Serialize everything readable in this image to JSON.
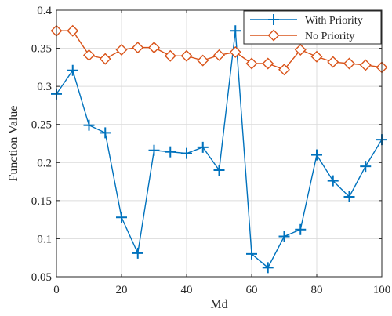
{
  "chart_data": {
    "type": "line",
    "title": "",
    "xlabel": "Md",
    "ylabel": "Function Value",
    "xlim": [
      0,
      100
    ],
    "ylim": [
      0.05,
      0.4
    ],
    "x_ticks": [
      0,
      20,
      40,
      60,
      80,
      100
    ],
    "x_tick_labels": [
      "0",
      "20",
      "40",
      "60",
      "80",
      "100"
    ],
    "y_ticks": [
      0.05,
      0.1,
      0.15,
      0.2,
      0.25,
      0.3,
      0.35,
      0.4
    ],
    "y_tick_labels": [
      "0.05",
      "0.1",
      "0.15",
      "0.2",
      "0.25",
      "0.3",
      "0.35",
      "0.4"
    ],
    "grid": true,
    "legend_position": "top-right",
    "x": [
      0,
      5,
      10,
      15,
      20,
      25,
      30,
      35,
      40,
      45,
      50,
      55,
      60,
      65,
      70,
      75,
      80,
      85,
      90,
      95,
      100
    ],
    "series": [
      {
        "name": "With Priority",
        "color": "#0072BD",
        "marker": "plus",
        "values": [
          0.29,
          0.321,
          0.249,
          0.239,
          0.128,
          0.081,
          0.216,
          0.214,
          0.212,
          0.22,
          0.19,
          0.373,
          0.08,
          0.062,
          0.103,
          0.112,
          0.21,
          0.176,
          0.155,
          0.195,
          0.23
        ]
      },
      {
        "name": "No Priority",
        "color": "#D95319",
        "marker": "diamond",
        "values": [
          0.373,
          0.373,
          0.341,
          0.336,
          0.348,
          0.351,
          0.351,
          0.34,
          0.34,
          0.334,
          0.341,
          0.345,
          0.33,
          0.33,
          0.322,
          0.348,
          0.339,
          0.332,
          0.33,
          0.328,
          0.325
        ]
      }
    ]
  }
}
